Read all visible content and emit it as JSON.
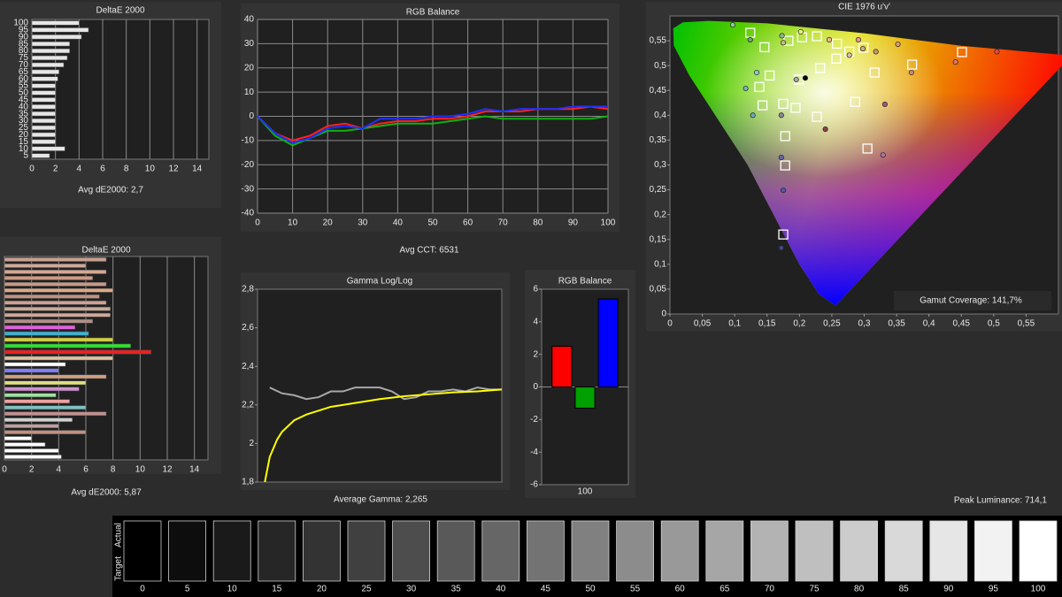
{
  "chart_data": [
    {
      "type": "hbar",
      "title": "DeltaE 2000",
      "caption": "Avg dE2000: 2,7",
      "categories": [
        "100",
        "95",
        "90",
        "85",
        "80",
        "75",
        "70",
        "65",
        "60",
        "55",
        "50",
        "45",
        "40",
        "35",
        "30",
        "25",
        "20",
        "15",
        "10",
        "5"
      ],
      "values": [
        4,
        4.8,
        4.2,
        3.2,
        3.2,
        3,
        2.7,
        2.3,
        2.2,
        2,
        2,
        2,
        2,
        2,
        2,
        2,
        2,
        2,
        2.8,
        1.5
      ],
      "color": "#e6e6e6",
      "xlim": [
        0,
        15
      ],
      "xticks": [
        0,
        2,
        4,
        6,
        8,
        10,
        12,
        14
      ],
      "grid": true
    },
    {
      "type": "hbar",
      "title": "DeltaE 2000",
      "caption": "Avg dE2000: 5,87",
      "categories": [
        null,
        null,
        null,
        null,
        null,
        null,
        null,
        null,
        null,
        null,
        null,
        null,
        null,
        null,
        null,
        null,
        null,
        null,
        null,
        null,
        null,
        null,
        null,
        null,
        null,
        null,
        null,
        null,
        null,
        null,
        null,
        null,
        null
      ],
      "values": [
        7.5,
        6,
        7.5,
        6.5,
        7.5,
        8,
        7,
        7.5,
        7.8,
        7.8,
        6.5,
        5.2,
        6.2,
        8,
        9.3,
        10.8,
        8,
        4.5,
        4,
        7.5,
        6,
        5.5,
        3.8,
        4.8,
        6,
        7.5,
        5,
        4,
        6,
        2,
        3,
        4,
        4.2
      ],
      "colors": [
        "#c8a090",
        "#d0a898",
        "#d4a890",
        "#d09880",
        "#c89888",
        "#e0a888",
        "#c09080",
        "#d0a090",
        "#c8a898",
        "#d0a898",
        "#b09088",
        "#e060e0",
        "#40b0d0",
        "#d0d040",
        "#30e030",
        "#f02020",
        "#e0c0a0",
        "#ffffff",
        "#8080ff",
        "#d0a080",
        "#e0e080",
        "#d090d0",
        "#a0e0a0",
        "#f0a0a0",
        "#80c0c0",
        "#c09090",
        "#d0d0d0",
        "#c0a0a0",
        "#c09080",
        "#ffffff",
        "#ffffff",
        "#ffffff",
        "#ffffff"
      ],
      "xlim": [
        0,
        15
      ],
      "xticks": [
        0,
        2,
        4,
        6,
        8,
        10,
        12,
        14
      ],
      "grid": true
    },
    {
      "type": "line",
      "title": "RGB Balance",
      "caption": "Avg CCT: 6531",
      "x": [
        0,
        5,
        10,
        15,
        20,
        25,
        30,
        35,
        40,
        45,
        50,
        55,
        60,
        65,
        70,
        75,
        80,
        85,
        90,
        95,
        100
      ],
      "series": [
        {
          "color": "#ff2020",
          "values": [
            0,
            -7,
            -10,
            -8,
            -4,
            -3,
            -5,
            -3,
            -2,
            -2,
            -1,
            -1,
            0,
            2,
            2,
            2,
            3,
            3,
            3,
            4,
            3
          ]
        },
        {
          "color": "#10b010",
          "values": [
            0,
            -8,
            -12,
            -9,
            -6,
            -6,
            -5,
            -4,
            -3,
            -3,
            -3,
            -2,
            -1,
            0,
            -1,
            -1,
            -1,
            -1,
            -1,
            -1,
            0
          ]
        },
        {
          "color": "#2030ff",
          "values": [
            0,
            -7,
            -11,
            -9,
            -5,
            -4,
            -5,
            -1,
            -1,
            -1,
            0,
            0,
            1,
            3,
            2,
            3,
            3,
            3,
            4,
            4,
            4
          ]
        }
      ],
      "xlim": [
        0,
        100
      ],
      "xticks": [
        0,
        10,
        20,
        30,
        40,
        50,
        60,
        70,
        80,
        90,
        100
      ],
      "ylim": [
        -40,
        40
      ],
      "yticks": [
        -40,
        -30,
        -20,
        -10,
        0,
        10,
        20,
        30,
        40
      ],
      "grid": true
    },
    {
      "type": "line",
      "title": "Gamma Log/Log",
      "caption": "Average Gamma: 2,265",
      "series": [
        {
          "color": "#a8a8a8",
          "x": [
            5,
            10,
            15,
            20,
            25,
            30,
            35,
            40,
            45,
            50,
            55,
            60,
            65,
            70,
            75,
            80,
            85,
            90,
            95,
            100
          ],
          "values": [
            2.29,
            2.26,
            2.25,
            2.23,
            2.24,
            2.27,
            2.27,
            2.29,
            2.29,
            2.29,
            2.27,
            2.23,
            2.24,
            2.27,
            2.27,
            2.28,
            2.27,
            2.29,
            2.28,
            2.28
          ]
        },
        {
          "color": "#ffff00",
          "x": [
            3,
            5,
            8,
            10,
            15,
            20,
            30,
            40,
            50,
            60,
            70,
            80,
            90,
            100
          ],
          "values": [
            1.8,
            1.93,
            2.02,
            2.06,
            2.12,
            2.15,
            2.19,
            2.21,
            2.23,
            2.245,
            2.255,
            2.265,
            2.27,
            2.28
          ]
        }
      ],
      "xlim": [
        0,
        100
      ],
      "ylim": [
        1.8,
        2.8
      ],
      "yticks": [
        {
          "value": 1.8,
          "label": "1,8"
        },
        2,
        {
          "value": 2.2,
          "label": "2,2"
        },
        {
          "value": 2.4,
          "label": "2,4"
        },
        {
          "value": 2.6,
          "label": "2,6"
        },
        {
          "value": 2.8,
          "label": "2,8"
        }
      ],
      "grid": false
    },
    {
      "type": "bar",
      "title": "RGB Balance",
      "categories": [
        "100"
      ],
      "series": [
        {
          "color": "#ff0000",
          "values": [
            2.5
          ]
        },
        {
          "color": "#00a000",
          "values": [
            -1.3
          ]
        },
        {
          "color": "#0000ff",
          "values": [
            5.4
          ]
        }
      ],
      "ylim": [
        -6,
        6
      ],
      "yticks": [
        -6,
        -4,
        -2,
        0,
        2,
        4,
        6
      ]
    },
    {
      "type": "scatter",
      "title": "CIE 1976 u'v'",
      "annotation": "Gamut Coverage:  141,7%",
      "series": [
        {
          "marker": "square",
          "color": "#ffffff",
          "x": [
            0.124,
            0.146,
            0.183,
            0.204,
            0.227,
            0.258,
            0.299,
            0.374,
            0.451,
            0.154,
            0.138,
            0.143,
            0.175,
            0.194,
            0.227,
            0.286,
            0.316,
            0.178,
            0.178,
            0.305,
            0.175,
            0.199,
            0.232,
            0.257,
            0.277
          ],
          "values": [
            0.566,
            0.537,
            0.55,
            0.557,
            0.559,
            0.544,
            0.536,
            0.502,
            0.527,
            0.48,
            0.457,
            0.42,
            0.423,
            0.415,
            0.397,
            0.427,
            0.486,
            0.358,
            0.299,
            0.333,
            0.16,
            0.472,
            0.495,
            0.514,
            0.528
          ]
        },
        {
          "marker": "circle",
          "x": [
            0.097,
            0.124,
            0.173,
            0.175,
            0.202,
            0.246,
            0.291,
            0.352,
            0.441,
            0.505,
            0.134,
            0.117,
            0.128,
            0.172,
            0.172,
            0.175,
            0.172,
            0.195,
            0.209,
            0.24,
            0.329,
            0.332,
            0.373,
            0.298,
            0.277,
            0.318
          ],
          "values": [
            0.582,
            0.552,
            0.56,
            0.546,
            0.568,
            0.552,
            0.552,
            0.543,
            0.507,
            0.528,
            0.486,
            0.454,
            0.4,
            0.4,
            0.315,
            0.249,
            0.133,
            0.472,
            0.475,
            0.372,
            0.32,
            0.422,
            0.486,
            0.534,
            0.521,
            0.528
          ],
          "colors": [
            "#88cc88",
            "#66aa66",
            "#88bb88",
            "#ccbb88",
            "#eeee88",
            "#eebb88",
            "#ee9988",
            "#dd9977",
            "#dd7766",
            "#ee4444",
            "#88cccc",
            "#66bbbb",
            "#66aabb",
            "#888899",
            "#6666aa",
            "#5555aa",
            "#444488",
            "#aaaaaa",
            "#000000",
            "#884444",
            "#aa77aa",
            "#aa5577",
            "#cc8877",
            "#ccaa88",
            "#ddbbaa",
            "#cc9966"
          ]
        }
      ],
      "xlim": [
        0,
        0.6
      ],
      "xticks": [
        0,
        {
          "value": 0.05,
          "label": "0,05"
        },
        {
          "value": 0.1,
          "label": "0,1"
        },
        {
          "value": 0.15,
          "label": "0,15"
        },
        {
          "value": 0.2,
          "label": "0,2"
        },
        {
          "value": 0.25,
          "label": "0,25"
        },
        {
          "value": 0.3,
          "label": "0,3"
        },
        {
          "value": 0.35,
          "label": "0,35"
        },
        {
          "value": 0.4,
          "label": "0,4"
        },
        {
          "value": 0.45,
          "label": "0,45"
        },
        {
          "value": 0.5,
          "label": "0,5"
        },
        {
          "value": 0.55,
          "label": "0,55"
        }
      ],
      "ylim": [
        0,
        0.6
      ],
      "yticks": [
        0,
        {
          "value": 0.05,
          "label": "0,05"
        },
        {
          "value": 0.1,
          "label": "0,1"
        },
        {
          "value": 0.15,
          "label": "0,15"
        },
        {
          "value": 0.2,
          "label": "0,2"
        },
        {
          "value": 0.25,
          "label": "0,25"
        },
        {
          "value": 0.3,
          "label": "0,3"
        },
        {
          "value": 0.35,
          "label": "0,35"
        },
        {
          "value": 0.4,
          "label": "0,4"
        },
        {
          "value": 0.45,
          "label": "0,45"
        },
        {
          "value": 0.5,
          "label": "0,5"
        },
        {
          "value": 0.55,
          "label": "0,55"
        }
      ]
    }
  ],
  "peak_luminance": "Peak Luminance: 714,1",
  "grayscale": {
    "rows": [
      "Actual",
      "Target"
    ],
    "levels": [
      "0",
      "5",
      "10",
      "15",
      "20",
      "25",
      "30",
      "35",
      "40",
      "45",
      "50",
      "55",
      "60",
      "65",
      "70",
      "75",
      "80",
      "85",
      "90",
      "95",
      "100"
    ]
  }
}
